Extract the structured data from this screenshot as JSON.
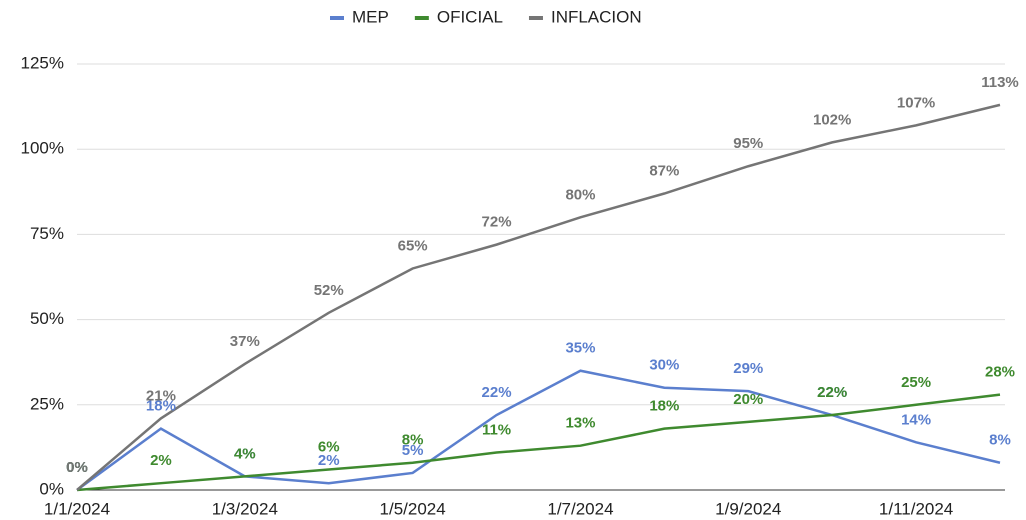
{
  "chart_data": {
    "type": "line",
    "categories": [
      "1/1/2024",
      null,
      "1/3/2024",
      null,
      "1/5/2024",
      null,
      "1/7/2024",
      null,
      "1/9/2024",
      null,
      "1/11/2024",
      null
    ],
    "series": [
      {
        "name": "MEP",
        "color": "#5b7fce",
        "values": [
          0,
          18,
          4,
          2,
          5,
          22,
          35,
          30,
          29,
          22,
          14,
          8
        ],
        "value_labels": [
          "0%",
          "18%",
          "4%",
          "2%",
          "5%",
          "22%",
          "35%",
          "30%",
          "29%",
          "22%",
          "14%",
          "8%"
        ]
      },
      {
        "name": "OFICIAL",
        "color": "#3f8a2f",
        "values": [
          0,
          2,
          4,
          6,
          8,
          11,
          13,
          18,
          20,
          22,
          25,
          28
        ],
        "value_labels": [
          "0%",
          "2%",
          "4%",
          "6%",
          "8%",
          "11%",
          "13%",
          "18%",
          "20%",
          "22%",
          "25%",
          "28%"
        ]
      },
      {
        "name": "INFLACION",
        "color": "#757575",
        "values": [
          0,
          21,
          37,
          52,
          65,
          72,
          80,
          87,
          95,
          102,
          107,
          113
        ],
        "value_labels": [
          "0%",
          "21%",
          "37%",
          "52%",
          "65%",
          "72%",
          "80%",
          "87%",
          "95%",
          "102%",
          "107%",
          "113%"
        ]
      }
    ],
    "ylim": [
      0,
      125
    ],
    "yticks": [
      {
        "value": 0,
        "label": "0%"
      },
      {
        "value": 25,
        "label": "25%"
      },
      {
        "value": 50,
        "label": "50%"
      },
      {
        "value": 75,
        "label": "75%"
      },
      {
        "value": 100,
        "label": "100%"
      },
      {
        "value": 125,
        "label": "125%"
      }
    ],
    "grid": true,
    "legend": "top"
  }
}
